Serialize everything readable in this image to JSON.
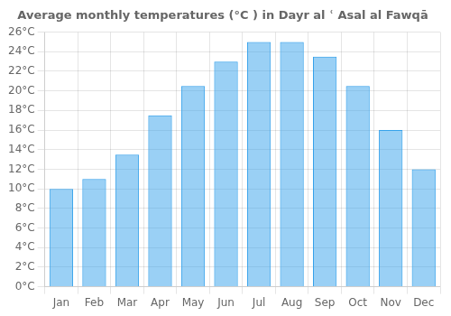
{
  "chart_data": {
    "type": "bar",
    "title": "Average monthly temperatures (°C ) in Dayr al ʿ Asal al Fawqā",
    "categories": [
      "Jan",
      "Feb",
      "Mar",
      "Apr",
      "May",
      "Jun",
      "Jul",
      "Aug",
      "Sep",
      "Oct",
      "Nov",
      "Dec"
    ],
    "values": [
      10.0,
      11.0,
      13.5,
      17.5,
      20.5,
      23.0,
      25.0,
      25.0,
      23.5,
      20.5,
      16.0,
      12.0
    ],
    "ylim": [
      0,
      26
    ],
    "yticks": [
      {
        "value": 0,
        "label": "0°C"
      },
      {
        "value": 2,
        "label": "2°C"
      },
      {
        "value": 4,
        "label": "4°C"
      },
      {
        "value": 6,
        "label": "6°C"
      },
      {
        "value": 8,
        "label": "8°C"
      },
      {
        "value": 10,
        "label": "10°C"
      },
      {
        "value": 12,
        "label": "12°C"
      },
      {
        "value": 14,
        "label": "14°C"
      },
      {
        "value": 16,
        "label": "16°C"
      },
      {
        "value": 18,
        "label": "18°C"
      },
      {
        "value": 20,
        "label": "20°C"
      },
      {
        "value": 22,
        "label": "22°C"
      },
      {
        "value": 24,
        "label": "24°C"
      },
      {
        "value": 26,
        "label": "26°C"
      }
    ],
    "grid": true
  }
}
